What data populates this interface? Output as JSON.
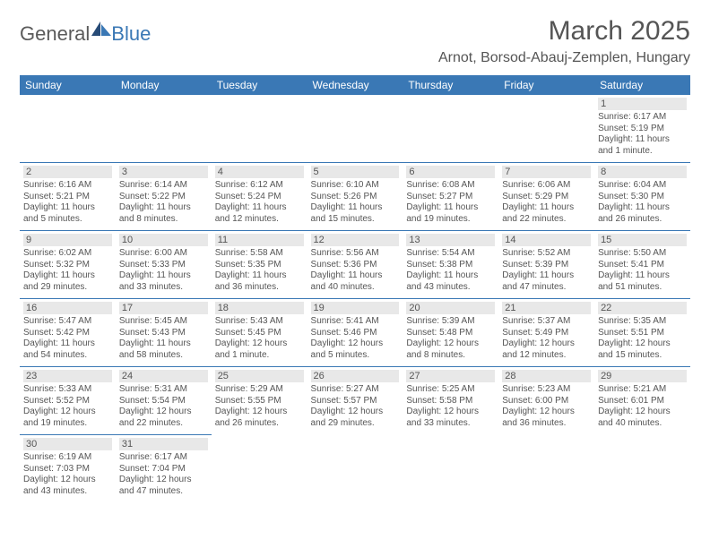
{
  "logo": {
    "part1": "General",
    "part2": "Blue"
  },
  "title": "March 2025",
  "location": "Arnot, Borsod-Abauj-Zemplen, Hungary",
  "colors": {
    "headerBg": "#3a78b5",
    "headerText": "#ffffff",
    "border": "#3a78b5",
    "dayBg": "#e8e8e8",
    "textColor": "#555555",
    "logoBlue": "#3a78b5",
    "logoGray": "#5a5a5a",
    "pageBg": "#ffffff"
  },
  "dayHeaders": [
    "Sunday",
    "Monday",
    "Tuesday",
    "Wednesday",
    "Thursday",
    "Friday",
    "Saturday"
  ],
  "weeks": [
    [
      null,
      null,
      null,
      null,
      null,
      null,
      {
        "n": "1",
        "sr": "Sunrise: 6:17 AM",
        "ss": "Sunset: 5:19 PM",
        "d1": "Daylight: 11 hours",
        "d2": "and 1 minute."
      }
    ],
    [
      {
        "n": "2",
        "sr": "Sunrise: 6:16 AM",
        "ss": "Sunset: 5:21 PM",
        "d1": "Daylight: 11 hours",
        "d2": "and 5 minutes."
      },
      {
        "n": "3",
        "sr": "Sunrise: 6:14 AM",
        "ss": "Sunset: 5:22 PM",
        "d1": "Daylight: 11 hours",
        "d2": "and 8 minutes."
      },
      {
        "n": "4",
        "sr": "Sunrise: 6:12 AM",
        "ss": "Sunset: 5:24 PM",
        "d1": "Daylight: 11 hours",
        "d2": "and 12 minutes."
      },
      {
        "n": "5",
        "sr": "Sunrise: 6:10 AM",
        "ss": "Sunset: 5:26 PM",
        "d1": "Daylight: 11 hours",
        "d2": "and 15 minutes."
      },
      {
        "n": "6",
        "sr": "Sunrise: 6:08 AM",
        "ss": "Sunset: 5:27 PM",
        "d1": "Daylight: 11 hours",
        "d2": "and 19 minutes."
      },
      {
        "n": "7",
        "sr": "Sunrise: 6:06 AM",
        "ss": "Sunset: 5:29 PM",
        "d1": "Daylight: 11 hours",
        "d2": "and 22 minutes."
      },
      {
        "n": "8",
        "sr": "Sunrise: 6:04 AM",
        "ss": "Sunset: 5:30 PM",
        "d1": "Daylight: 11 hours",
        "d2": "and 26 minutes."
      }
    ],
    [
      {
        "n": "9",
        "sr": "Sunrise: 6:02 AM",
        "ss": "Sunset: 5:32 PM",
        "d1": "Daylight: 11 hours",
        "d2": "and 29 minutes."
      },
      {
        "n": "10",
        "sr": "Sunrise: 6:00 AM",
        "ss": "Sunset: 5:33 PM",
        "d1": "Daylight: 11 hours",
        "d2": "and 33 minutes."
      },
      {
        "n": "11",
        "sr": "Sunrise: 5:58 AM",
        "ss": "Sunset: 5:35 PM",
        "d1": "Daylight: 11 hours",
        "d2": "and 36 minutes."
      },
      {
        "n": "12",
        "sr": "Sunrise: 5:56 AM",
        "ss": "Sunset: 5:36 PM",
        "d1": "Daylight: 11 hours",
        "d2": "and 40 minutes."
      },
      {
        "n": "13",
        "sr": "Sunrise: 5:54 AM",
        "ss": "Sunset: 5:38 PM",
        "d1": "Daylight: 11 hours",
        "d2": "and 43 minutes."
      },
      {
        "n": "14",
        "sr": "Sunrise: 5:52 AM",
        "ss": "Sunset: 5:39 PM",
        "d1": "Daylight: 11 hours",
        "d2": "and 47 minutes."
      },
      {
        "n": "15",
        "sr": "Sunrise: 5:50 AM",
        "ss": "Sunset: 5:41 PM",
        "d1": "Daylight: 11 hours",
        "d2": "and 51 minutes."
      }
    ],
    [
      {
        "n": "16",
        "sr": "Sunrise: 5:47 AM",
        "ss": "Sunset: 5:42 PM",
        "d1": "Daylight: 11 hours",
        "d2": "and 54 minutes."
      },
      {
        "n": "17",
        "sr": "Sunrise: 5:45 AM",
        "ss": "Sunset: 5:43 PM",
        "d1": "Daylight: 11 hours",
        "d2": "and 58 minutes."
      },
      {
        "n": "18",
        "sr": "Sunrise: 5:43 AM",
        "ss": "Sunset: 5:45 PM",
        "d1": "Daylight: 12 hours",
        "d2": "and 1 minute."
      },
      {
        "n": "19",
        "sr": "Sunrise: 5:41 AM",
        "ss": "Sunset: 5:46 PM",
        "d1": "Daylight: 12 hours",
        "d2": "and 5 minutes."
      },
      {
        "n": "20",
        "sr": "Sunrise: 5:39 AM",
        "ss": "Sunset: 5:48 PM",
        "d1": "Daylight: 12 hours",
        "d2": "and 8 minutes."
      },
      {
        "n": "21",
        "sr": "Sunrise: 5:37 AM",
        "ss": "Sunset: 5:49 PM",
        "d1": "Daylight: 12 hours",
        "d2": "and 12 minutes."
      },
      {
        "n": "22",
        "sr": "Sunrise: 5:35 AM",
        "ss": "Sunset: 5:51 PM",
        "d1": "Daylight: 12 hours",
        "d2": "and 15 minutes."
      }
    ],
    [
      {
        "n": "23",
        "sr": "Sunrise: 5:33 AM",
        "ss": "Sunset: 5:52 PM",
        "d1": "Daylight: 12 hours",
        "d2": "and 19 minutes."
      },
      {
        "n": "24",
        "sr": "Sunrise: 5:31 AM",
        "ss": "Sunset: 5:54 PM",
        "d1": "Daylight: 12 hours",
        "d2": "and 22 minutes."
      },
      {
        "n": "25",
        "sr": "Sunrise: 5:29 AM",
        "ss": "Sunset: 5:55 PM",
        "d1": "Daylight: 12 hours",
        "d2": "and 26 minutes."
      },
      {
        "n": "26",
        "sr": "Sunrise: 5:27 AM",
        "ss": "Sunset: 5:57 PM",
        "d1": "Daylight: 12 hours",
        "d2": "and 29 minutes."
      },
      {
        "n": "27",
        "sr": "Sunrise: 5:25 AM",
        "ss": "Sunset: 5:58 PM",
        "d1": "Daylight: 12 hours",
        "d2": "and 33 minutes."
      },
      {
        "n": "28",
        "sr": "Sunrise: 5:23 AM",
        "ss": "Sunset: 6:00 PM",
        "d1": "Daylight: 12 hours",
        "d2": "and 36 minutes."
      },
      {
        "n": "29",
        "sr": "Sunrise: 5:21 AM",
        "ss": "Sunset: 6:01 PM",
        "d1": "Daylight: 12 hours",
        "d2": "and 40 minutes."
      }
    ],
    [
      {
        "n": "30",
        "sr": "Sunrise: 6:19 AM",
        "ss": "Sunset: 7:03 PM",
        "d1": "Daylight: 12 hours",
        "d2": "and 43 minutes."
      },
      {
        "n": "31",
        "sr": "Sunrise: 6:17 AM",
        "ss": "Sunset: 7:04 PM",
        "d1": "Daylight: 12 hours",
        "d2": "and 47 minutes."
      },
      null,
      null,
      null,
      null,
      null
    ]
  ]
}
